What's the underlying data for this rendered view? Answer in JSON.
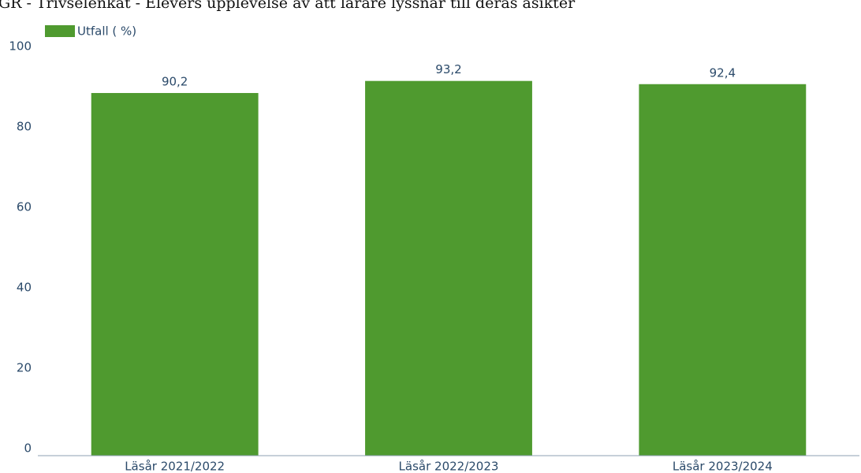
{
  "chart_data": {
    "type": "bar",
    "title": "GR - Trivselenkät - Elevers upplevelse av att lärare lyssnar till deras åsikter",
    "categories": [
      "Läsår 2021/2022",
      "Läsår 2022/2023",
      "Läsår 2023/2024"
    ],
    "series": [
      {
        "name": "Utfall ( %)",
        "color": "#4f9a2f",
        "values": [
          90.2,
          93.2,
          92.4
        ],
        "value_labels": [
          "90,2",
          "93,2",
          "92,4"
        ]
      }
    ],
    "ylim": [
      0,
      100
    ],
    "yticks": [
      0,
      20,
      40,
      60,
      80,
      100
    ],
    "grid": false
  }
}
